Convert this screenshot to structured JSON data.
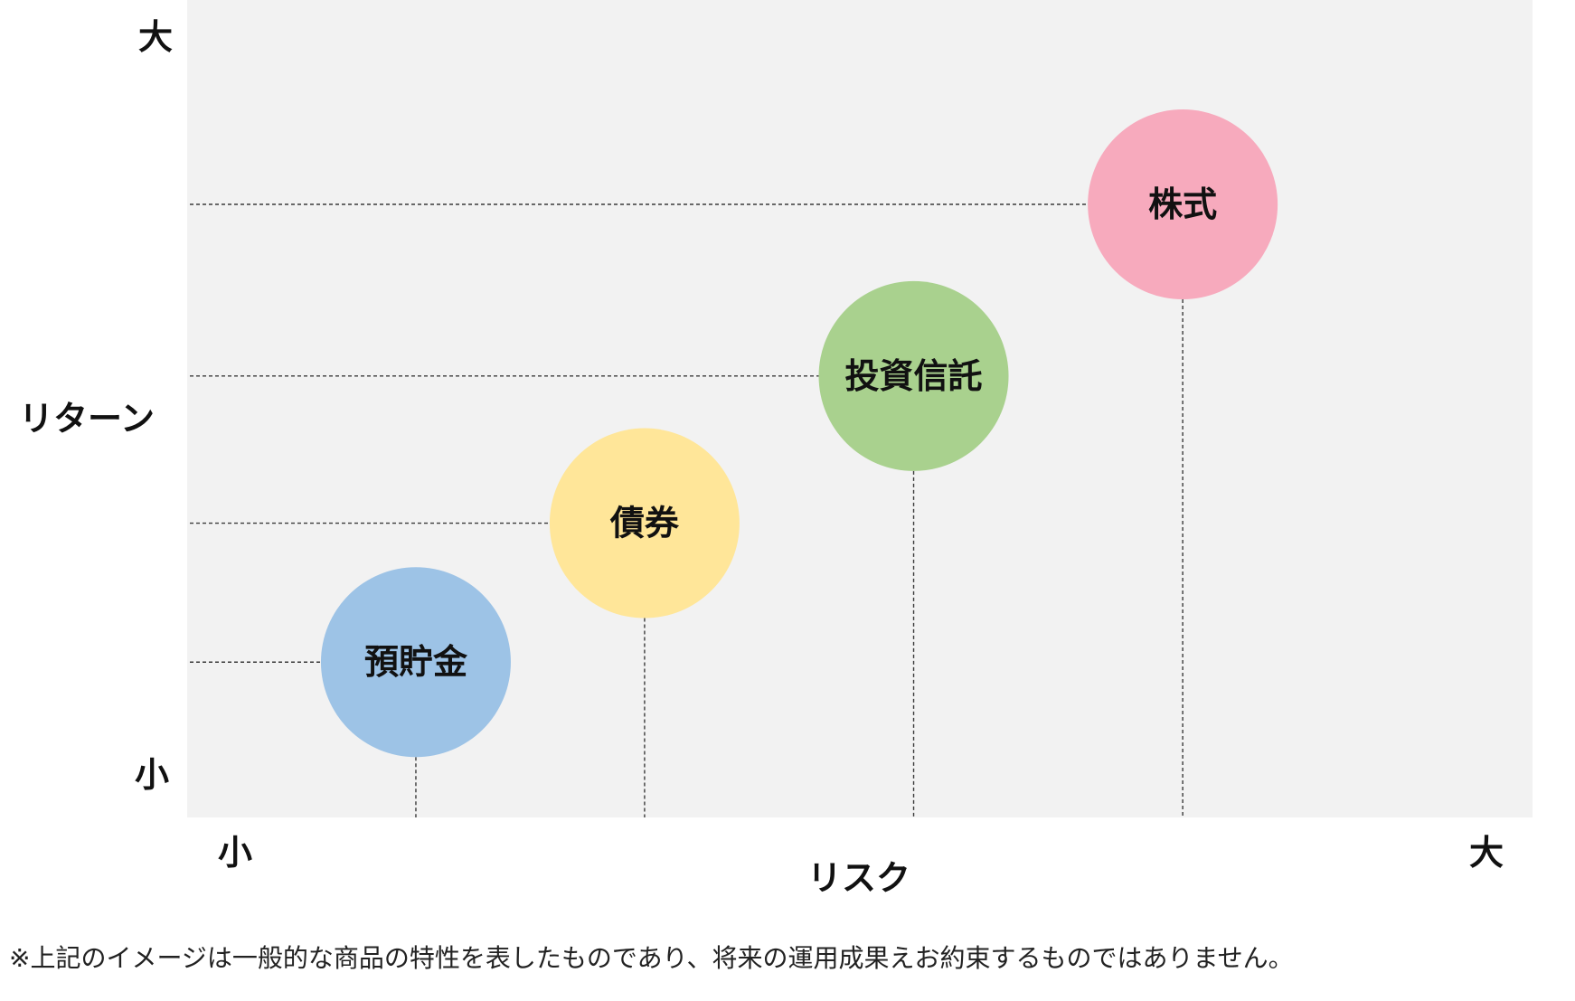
{
  "chart_data": {
    "type": "scatter",
    "subtype": "bubble",
    "xlabel": "リスク",
    "ylabel": "リターン",
    "x_axis_ends": {
      "min_label": "小",
      "max_label": "大"
    },
    "y_axis_ends": {
      "min_label": "小",
      "max_label": "大"
    },
    "xlim": [
      0,
      100
    ],
    "ylim": [
      0,
      100
    ],
    "grid": false,
    "guide_lines": "dashed, from each bubble to both axes",
    "points": [
      {
        "label": "預貯金",
        "x": 17,
        "y": 19,
        "color": "#9dc3e6"
      },
      {
        "label": "債券",
        "x": 34,
        "y": 36,
        "color": "#ffe699"
      },
      {
        "label": "投資信託",
        "x": 54,
        "y": 54,
        "color": "#a9d18e"
      },
      {
        "label": "株式",
        "x": 74,
        "y": 75,
        "color": "#f7aabd"
      }
    ]
  },
  "footnote": "※上記のイメージは一般的な商品の特性を表したものであり、将来の運用成果えお約束するものではありません。"
}
